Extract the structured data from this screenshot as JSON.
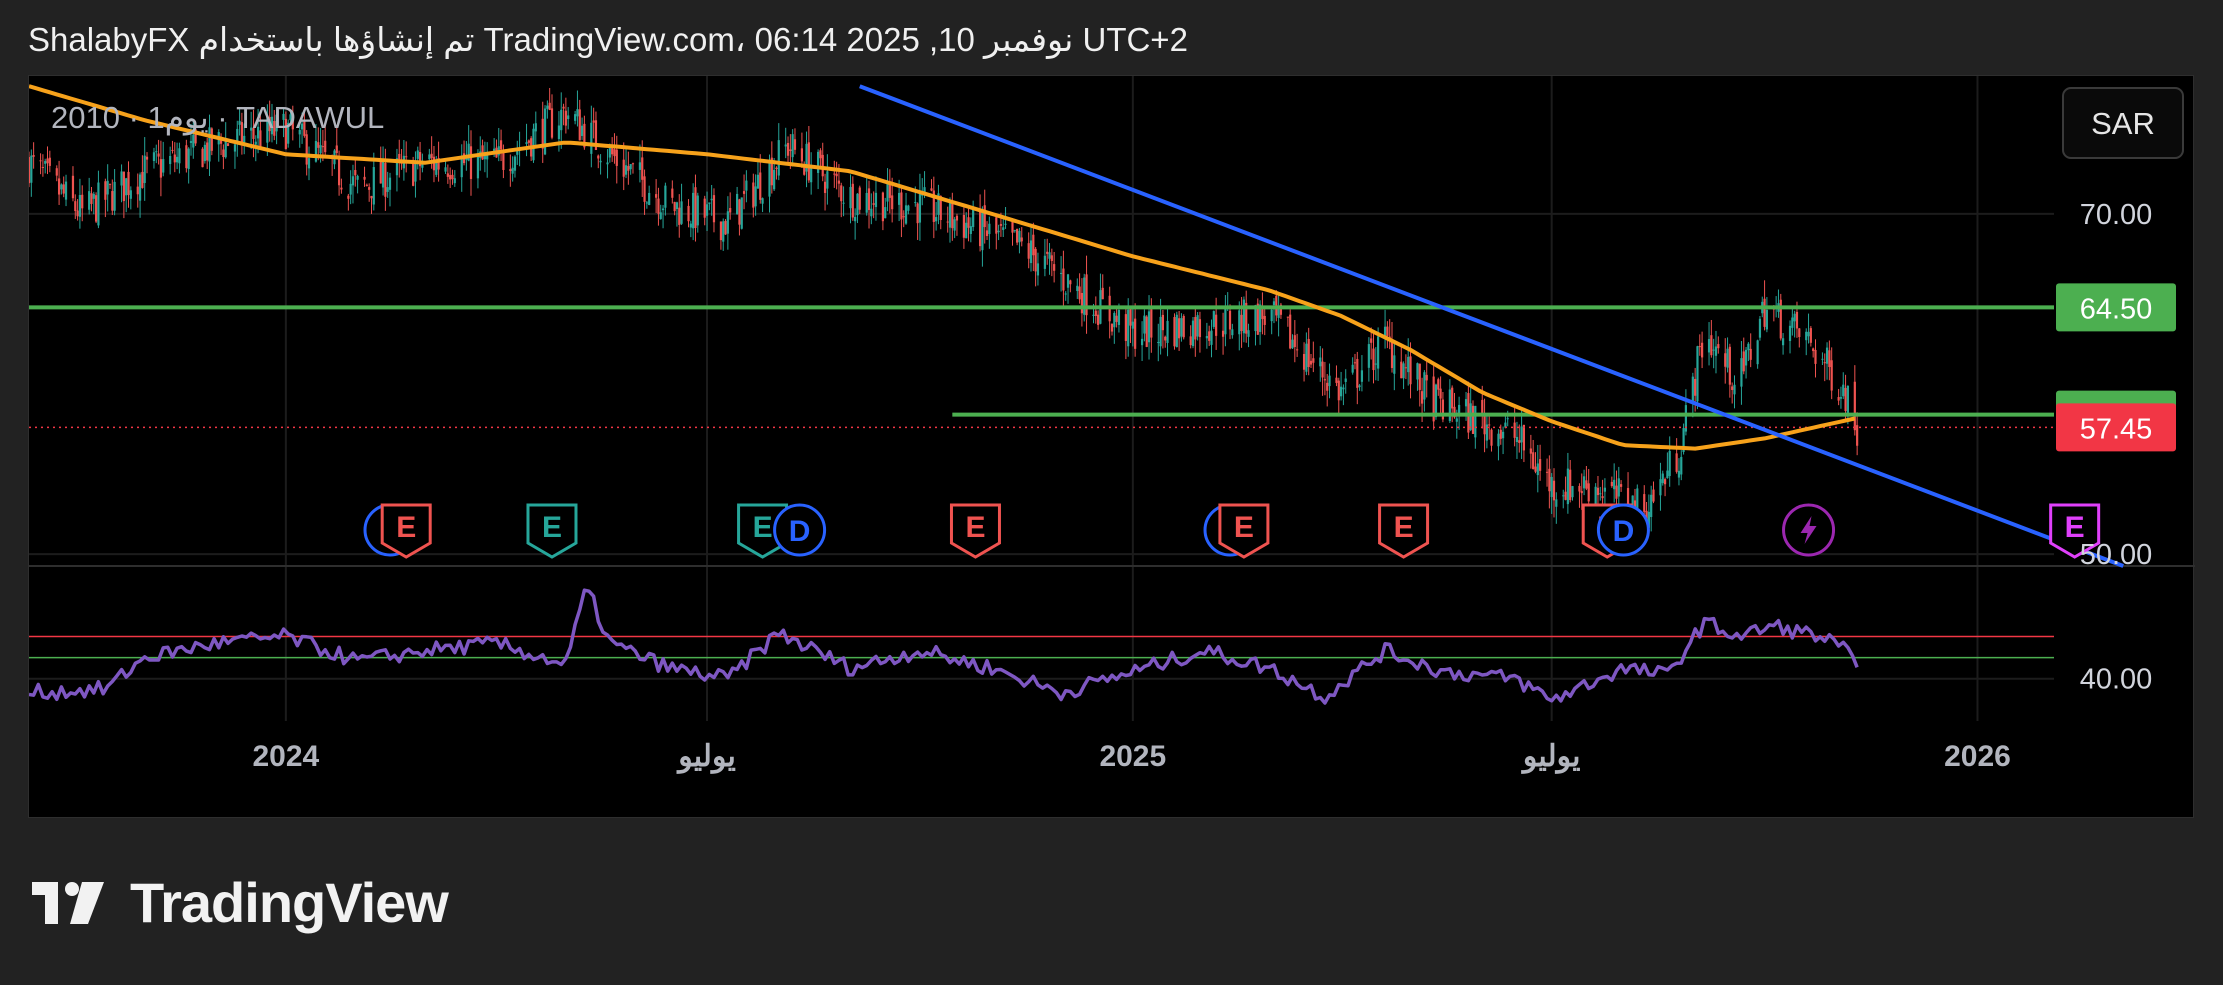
{
  "header": {
    "text": "ShalabyFX تم إنشاؤها باستخدام TradingView.com، 06:14 2025 ,10 نوفمبر UTC+2"
  },
  "symbol_label": "2010 · 1يوم · TADAWUL",
  "currency": "SAR",
  "brand": {
    "name": "TradingView"
  },
  "colors": {
    "background": "#000000",
    "up_candle": "#26a69a",
    "down_candle": "#ef5350",
    "moving_average": "#f7a21b",
    "trendline": "#2962ff",
    "horizontal_level": "#4caf50",
    "last_price": "#f23645",
    "rsi_line": "#7e57c2",
    "rsi_upper": "#f23645",
    "rsi_lower": "#4caf50"
  },
  "chart_data": {
    "type": "candlestick",
    "x_axis": {
      "ticks": [
        {
          "label": "2024",
          "date": "2024-01-01"
        },
        {
          "label": "يوليو",
          "date": "2024-07-01"
        },
        {
          "label": "2025",
          "date": "2025-01-01"
        },
        {
          "label": "يوليو",
          "date": "2025-07-01"
        },
        {
          "label": "2026",
          "date": "2026-01-01"
        }
      ],
      "range": [
        "2023-09-12",
        "2026-04-05"
      ]
    },
    "price_axis": {
      "ticks": [
        {
          "label": "70.00",
          "value": 70
        },
        {
          "label": "50.00",
          "value": 50
        }
      ],
      "range": [
        49.3,
        78.1
      ],
      "badges": [
        {
          "label": "64.50",
          "value": 64.5,
          "color": "#4caf50"
        },
        {
          "label": "58.20",
          "value": 58.2,
          "color": "#4caf50"
        },
        {
          "label": "57.45",
          "value": 57.45,
          "color": "#f23645"
        }
      ]
    },
    "price_keypoints": [
      [
        "2023-09-12",
        73.0
      ],
      [
        "2023-10-05",
        70.0
      ],
      [
        "2023-11-01",
        72.5
      ],
      [
        "2023-12-01",
        74.0
      ],
      [
        "2024-01-01",
        75.0
      ],
      [
        "2024-02-01",
        71.5
      ],
      [
        "2024-03-01",
        73.0
      ],
      [
        "2024-04-01",
        73.0
      ],
      [
        "2024-05-01",
        76.0
      ],
      [
        "2024-05-20",
        73.5
      ],
      [
        "2024-06-15",
        70.5
      ],
      [
        "2024-07-10",
        69.5
      ],
      [
        "2024-08-05",
        74.0
      ],
      [
        "2024-09-01",
        71.0
      ],
      [
        "2024-10-01",
        70.5
      ],
      [
        "2024-11-15",
        68.0
      ],
      [
        "2025-01-01",
        63.0
      ],
      [
        "2025-02-01",
        63.5
      ],
      [
        "2025-03-01",
        64.0
      ],
      [
        "2025-04-01",
        59.5
      ],
      [
        "2025-04-20",
        62.5
      ],
      [
        "2025-05-10",
        59.0
      ],
      [
        "2025-06-15",
        57.0
      ],
      [
        "2025-07-01",
        54.0
      ],
      [
        "2025-07-20",
        54.0
      ],
      [
        "2025-08-10",
        52.5
      ],
      [
        "2025-08-25",
        56.0
      ],
      [
        "2025-09-05",
        63.0
      ],
      [
        "2025-09-20",
        60.0
      ],
      [
        "2025-10-01",
        64.5
      ],
      [
        "2025-10-20",
        62.5
      ],
      [
        "2025-11-05",
        59.5
      ],
      [
        "2025-11-10",
        57.45
      ]
    ],
    "moving_average": [
      [
        "2023-09-12",
        77.5
      ],
      [
        "2023-11-01",
        75.5
      ],
      [
        "2024-01-01",
        73.5
      ],
      [
        "2024-03-01",
        73.0
      ],
      [
        "2024-05-01",
        74.2
      ],
      [
        "2024-07-01",
        73.5
      ],
      [
        "2024-09-01",
        72.5
      ],
      [
        "2024-11-01",
        70.0
      ],
      [
        "2025-01-01",
        67.5
      ],
      [
        "2025-03-01",
        65.5
      ],
      [
        "2025-04-01",
        64.0
      ],
      [
        "2025-05-01",
        62.0
      ],
      [
        "2025-06-01",
        59.5
      ],
      [
        "2025-07-01",
        57.8
      ],
      [
        "2025-08-01",
        56.4
      ],
      [
        "2025-09-01",
        56.2
      ],
      [
        "2025-10-01",
        56.8
      ],
      [
        "2025-11-10",
        58.0
      ]
    ],
    "trendline": {
      "start": [
        "2024-09-05",
        77.5
      ],
      "end": [
        "2026-03-05",
        49.3
      ]
    },
    "horizontal_levels": [
      {
        "value": 64.5,
        "from": "2023-09-12",
        "to": "2026-04-05"
      },
      {
        "value": 58.2,
        "from": "2024-10-15",
        "to": "2026-04-05"
      }
    ],
    "last_price_line": 57.45,
    "event_markers": [
      {
        "type": "dividend",
        "label": "D",
        "date": "2024-02-15"
      },
      {
        "type": "earnings",
        "label": "E",
        "date": "2024-02-22"
      },
      {
        "type": "earnings",
        "label": "E",
        "date": "2024-04-25"
      },
      {
        "type": "earnings",
        "label": "E",
        "date": "2024-07-25"
      },
      {
        "type": "dividend",
        "label": "D",
        "date": "2024-08-10"
      },
      {
        "type": "earnings",
        "label": "E",
        "date": "2024-10-25"
      },
      {
        "type": "dividend",
        "label": "D",
        "date": "2025-02-12"
      },
      {
        "type": "earnings",
        "label": "E",
        "date": "2025-02-18"
      },
      {
        "type": "earnings",
        "label": "E",
        "date": "2025-04-28"
      },
      {
        "type": "earnings",
        "label": "E",
        "date": "2025-07-25"
      },
      {
        "type": "dividend",
        "label": "D",
        "date": "2025-08-01"
      },
      {
        "type": "split",
        "label": "",
        "date": "2025-10-20"
      },
      {
        "type": "earnings",
        "label": "E",
        "date": "2026-02-12"
      }
    ],
    "rsi": {
      "axis_ticks": [
        {
          "label": "40.00",
          "value": 40
        }
      ],
      "range": [
        28,
        72
      ],
      "upper_level": 52,
      "lower_level": 46,
      "keypoints": [
        [
          "2023-09-12",
          36
        ],
        [
          "2023-10-15",
          37
        ],
        [
          "2023-11-01",
          46
        ],
        [
          "2023-12-01",
          50
        ],
        [
          "2024-01-01",
          52
        ],
        [
          "2024-02-01",
          45
        ],
        [
          "2024-03-01",
          48
        ],
        [
          "2024-04-01",
          50
        ],
        [
          "2024-05-01",
          44
        ],
        [
          "2024-05-10",
          66
        ],
        [
          "2024-05-20",
          50
        ],
        [
          "2024-06-15",
          43
        ],
        [
          "2024-07-10",
          40
        ],
        [
          "2024-08-01",
          53
        ],
        [
          "2024-09-01",
          43
        ],
        [
          "2024-10-01",
          48
        ],
        [
          "2024-11-01",
          43
        ],
        [
          "2024-12-01",
          36
        ],
        [
          "2025-01-01",
          42
        ],
        [
          "2025-02-01",
          48
        ],
        [
          "2025-03-01",
          43
        ],
        [
          "2025-03-25",
          35
        ],
        [
          "2025-04-20",
          48
        ],
        [
          "2025-05-15",
          42
        ],
        [
          "2025-06-15",
          40
        ],
        [
          "2025-07-01",
          34
        ],
        [
          "2025-08-01",
          43
        ],
        [
          "2025-08-20",
          41
        ],
        [
          "2025-09-05",
          56
        ],
        [
          "2025-09-20",
          52
        ],
        [
          "2025-10-05",
          55
        ],
        [
          "2025-10-25",
          52
        ],
        [
          "2025-11-05",
          48
        ],
        [
          "2025-11-10",
          42
        ]
      ]
    }
  }
}
